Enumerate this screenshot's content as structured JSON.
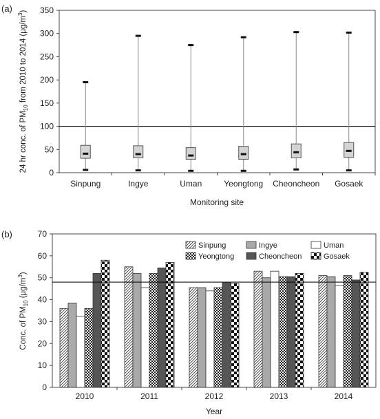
{
  "chart_data": [
    {
      "panel_label": "(a)",
      "type": "boxplot",
      "ylabel": {
        "pre": "24 hr conc. of PM",
        "sub": "10",
        "mid": " from 2010 to 2014 (μg/m",
        "sup": "3",
        "post": ")"
      },
      "xlabel": "Monitoring site",
      "ylim": [
        0,
        350
      ],
      "yticks": [
        "0",
        "50",
        "100",
        "150",
        "200",
        "250",
        "300",
        "350"
      ],
      "reference_line": 100,
      "categories": [
        "Sinpung",
        "Ingye",
        "Uman",
        "Yeongtong",
        "Cheoncheon",
        "Gosaek"
      ],
      "boxes": [
        {
          "min": 6,
          "q1": 31,
          "median": 41,
          "q3": 59,
          "max": 195
        },
        {
          "min": 5,
          "q1": 32,
          "median": 40,
          "q3": 58,
          "max": 295
        },
        {
          "min": 4,
          "q1": 29,
          "median": 37,
          "q3": 54,
          "max": 275
        },
        {
          "min": 4,
          "q1": 29,
          "median": 40,
          "q3": 57,
          "max": 292
        },
        {
          "min": 7,
          "q1": 32,
          "median": 44,
          "q3": 62,
          "max": 303
        },
        {
          "min": 5,
          "q1": 33,
          "median": 47,
          "q3": 65,
          "max": 302
        }
      ]
    },
    {
      "panel_label": "(b)",
      "type": "bar",
      "ylabel": {
        "pre": "Conc. of PM",
        "sub": "10",
        "mid": " (μg/m",
        "sup": "3",
        "post": ")"
      },
      "xlabel": "Year",
      "ylim": [
        0,
        70
      ],
      "yticks": [
        "0",
        "10",
        "20",
        "30",
        "40",
        "50",
        "60",
        "70"
      ],
      "reference_line": 48,
      "categories": [
        "2010",
        "2011",
        "2012",
        "2013",
        "2014"
      ],
      "series": [
        {
          "name": "Sinpung",
          "pattern": "hatch",
          "values": [
            36,
            55,
            45.5,
            53,
            51
          ]
        },
        {
          "name": "Ingye",
          "pattern": "gray",
          "values": [
            38.5,
            52,
            45.5,
            50,
            50.5
          ]
        },
        {
          "name": "Uman",
          "pattern": "white",
          "values": [
            32.5,
            45.5,
            44,
            53,
            46.5
          ]
        },
        {
          "name": "Yeongtong",
          "pattern": "dots",
          "values": [
            36,
            52,
            45.5,
            50.5,
            51
          ]
        },
        {
          "name": "Cheoncheon",
          "pattern": "dark",
          "values": [
            52,
            54.5,
            48,
            50.5,
            49
          ]
        },
        {
          "name": "Gosaek",
          "pattern": "checker",
          "values": [
            58,
            57,
            47.5,
            52,
            52.5
          ]
        }
      ],
      "legend_position": "top-right"
    }
  ]
}
